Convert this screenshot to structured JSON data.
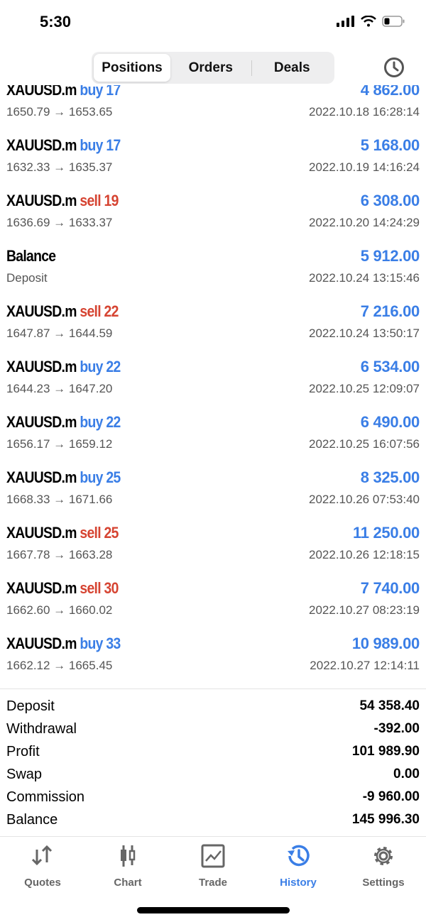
{
  "status": {
    "time": "5:30"
  },
  "tabs": {
    "positions": "Positions",
    "orders": "Orders",
    "deals": "Deals",
    "active": "Positions"
  },
  "rows": [
    {
      "symbol": "XAUUSD.m",
      "side": "buy",
      "volume": "17",
      "profit": "4 862.00",
      "prices": "1650.79 → 1653.65",
      "time": "2022.10.18 16:28:14"
    },
    {
      "symbol": "XAUUSD.m",
      "side": "buy",
      "volume": "17",
      "profit": "5 168.00",
      "prices": "1632.33 → 1635.37",
      "time": "2022.10.19 14:16:24"
    },
    {
      "symbol": "XAUUSD.m",
      "side": "sell",
      "volume": "19",
      "profit": "6 308.00",
      "prices": "1636.69 → 1633.37",
      "time": "2022.10.20 14:24:29"
    },
    {
      "symbol": "Balance",
      "side": "",
      "volume": "",
      "profit": "5 912.00",
      "prices": "Deposit",
      "time": "2022.10.24 13:15:46"
    },
    {
      "symbol": "XAUUSD.m",
      "side": "sell",
      "volume": "22",
      "profit": "7 216.00",
      "prices": "1647.87 → 1644.59",
      "time": "2022.10.24 13:50:17"
    },
    {
      "symbol": "XAUUSD.m",
      "side": "buy",
      "volume": "22",
      "profit": "6 534.00",
      "prices": "1644.23 → 1647.20",
      "time": "2022.10.25 12:09:07"
    },
    {
      "symbol": "XAUUSD.m",
      "side": "buy",
      "volume": "22",
      "profit": "6 490.00",
      "prices": "1656.17 → 1659.12",
      "time": "2022.10.25 16:07:56"
    },
    {
      "symbol": "XAUUSD.m",
      "side": "buy",
      "volume": "25",
      "profit": "8 325.00",
      "prices": "1668.33 → 1671.66",
      "time": "2022.10.26 07:53:40"
    },
    {
      "symbol": "XAUUSD.m",
      "side": "sell",
      "volume": "25",
      "profit": "11 250.00",
      "prices": "1667.78 → 1663.28",
      "time": "2022.10.26 12:18:15"
    },
    {
      "symbol": "XAUUSD.m",
      "side": "sell",
      "volume": "30",
      "profit": "7 740.00",
      "prices": "1662.60 → 1660.02",
      "time": "2022.10.27 08:23:19"
    },
    {
      "symbol": "XAUUSD.m",
      "side": "buy",
      "volume": "33",
      "profit": "10 989.00",
      "prices": "1662.12 → 1665.45",
      "time": "2022.10.27 12:14:11"
    }
  ],
  "summary": [
    {
      "label": "Deposit",
      "value": "54 358.40"
    },
    {
      "label": "Withdrawal",
      "value": "-392.00"
    },
    {
      "label": "Profit",
      "value": "101 989.90"
    },
    {
      "label": "Swap",
      "value": "0.00"
    },
    {
      "label": "Commission",
      "value": "-9 960.00"
    },
    {
      "label": "Balance",
      "value": "145 996.30"
    }
  ],
  "nav": [
    {
      "label": "Quotes",
      "icon": "arrows-up-down-icon"
    },
    {
      "label": "Chart",
      "icon": "candlestick-icon"
    },
    {
      "label": "Trade",
      "icon": "trade-chart-icon"
    },
    {
      "label": "History",
      "icon": "history-icon",
      "active": true
    },
    {
      "label": "Settings",
      "icon": "gear-icon"
    }
  ],
  "colors": {
    "accent": "#3a7ee6",
    "sell": "#d64432"
  }
}
